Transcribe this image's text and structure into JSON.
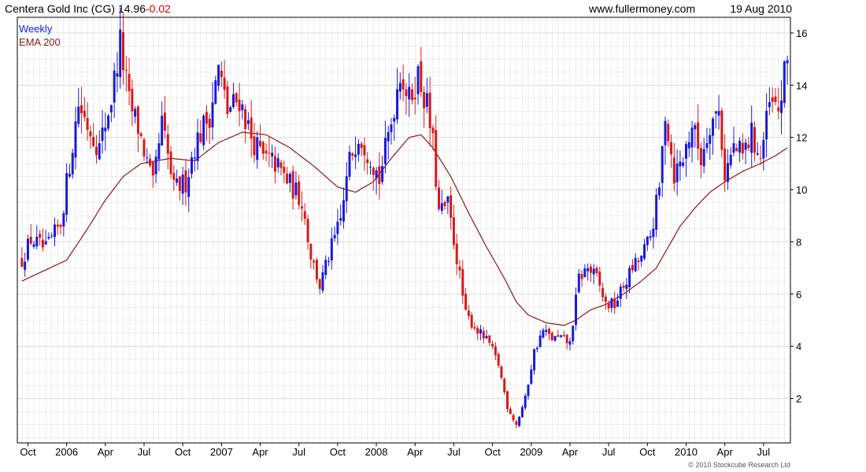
{
  "header": {
    "company": "Centera Gold Inc",
    "ticker_paren": "(CG)",
    "price": "14.96",
    "change": "-0.02",
    "site": "www.fullermoney.com",
    "date": "19 Aug 2010"
  },
  "legend": {
    "interval": "Weekly",
    "ema": "EMA 200"
  },
  "copyright": "© 2010 Stockcube Research Ltd",
  "colors": {
    "up": "#1a1ad6",
    "down": "#d61a1a",
    "ema": "#8b1a1a",
    "grid": "#dcdcdc",
    "frame": "#000000"
  },
  "chart_data": {
    "type": "candlestick",
    "interval": "weekly",
    "ylim": [
      0.3,
      16.6
    ],
    "ylabel": "",
    "xlabel": "",
    "y_ticks": [
      2,
      4,
      6,
      8,
      10,
      12,
      14,
      16
    ],
    "x_ticks": [
      {
        "label": "Oct",
        "week": 2
      },
      {
        "label": "2006",
        "week": 15
      },
      {
        "label": "Apr",
        "week": 28
      },
      {
        "label": "Jul",
        "week": 41
      },
      {
        "label": "Oct",
        "week": 54
      },
      {
        "label": "2007",
        "week": 67
      },
      {
        "label": "Apr",
        "week": 80
      },
      {
        "label": "Jul",
        "week": 93
      },
      {
        "label": "Oct",
        "week": 106
      },
      {
        "label": "2008",
        "week": 119
      },
      {
        "label": "Apr",
        "week": 132
      },
      {
        "label": "Jul",
        "week": 145
      },
      {
        "label": "Oct",
        "week": 158
      },
      {
        "label": "2009",
        "week": 171
      },
      {
        "label": "Apr",
        "week": 184
      },
      {
        "label": "Jul",
        "week": 197
      },
      {
        "label": "Oct",
        "week": 210
      },
      {
        "label": "2010",
        "week": 223
      },
      {
        "label": "Apr",
        "week": 236
      },
      {
        "label": "Jul",
        "week": 249
      }
    ],
    "week_count": 258,
    "close_anchors": [
      [
        0,
        7.3
      ],
      [
        3,
        8.1
      ],
      [
        8,
        7.7
      ],
      [
        13,
        8.7
      ],
      [
        16,
        11.0
      ],
      [
        19,
        13.3
      ],
      [
        22,
        12.5
      ],
      [
        26,
        11.6
      ],
      [
        30,
        13.5
      ],
      [
        33,
        15.6
      ],
      [
        36,
        13.3
      ],
      [
        39,
        12.4
      ],
      [
        44,
        10.1
      ],
      [
        47,
        12.5
      ],
      [
        51,
        10.0
      ],
      [
        55,
        10.3
      ],
      [
        58,
        11.7
      ],
      [
        63,
        12.9
      ],
      [
        66,
        14.6
      ],
      [
        69,
        13.0
      ],
      [
        73,
        13.5
      ],
      [
        77,
        12.0
      ],
      [
        81,
        11.2
      ],
      [
        85,
        11.0
      ],
      [
        90,
        10.2
      ],
      [
        94,
        9.6
      ],
      [
        97,
        7.5
      ],
      [
        100,
        6.3
      ],
      [
        104,
        7.8
      ],
      [
        107,
        8.8
      ],
      [
        110,
        11.1
      ],
      [
        113,
        12.2
      ],
      [
        117,
        11.3
      ],
      [
        120,
        10.4
      ],
      [
        124,
        12.6
      ],
      [
        127,
        14.6
      ],
      [
        130,
        13.4
      ],
      [
        133,
        14.4
      ],
      [
        136,
        13.2
      ],
      [
        138,
        11.7
      ],
      [
        140,
        9.1
      ],
      [
        143,
        9.4
      ],
      [
        146,
        7.4
      ],
      [
        149,
        5.2
      ],
      [
        153,
        4.6
      ],
      [
        157,
        4.1
      ],
      [
        160,
        3.3
      ],
      [
        163,
        1.7
      ],
      [
        166,
        1.0
      ],
      [
        169,
        2.0
      ],
      [
        172,
        3.8
      ],
      [
        175,
        4.6
      ],
      [
        178,
        4.3
      ],
      [
        181,
        4.3
      ],
      [
        184,
        4.1
      ],
      [
        187,
        6.6
      ],
      [
        190,
        7.0
      ],
      [
        193,
        6.6
      ],
      [
        196,
        5.6
      ],
      [
        199,
        5.6
      ],
      [
        202,
        6.3
      ],
      [
        205,
        7.0
      ],
      [
        208,
        7.4
      ],
      [
        211,
        8.2
      ],
      [
        214,
        10.0
      ],
      [
        216,
        13.0
      ],
      [
        219,
        10.6
      ],
      [
        222,
        11.2
      ],
      [
        225,
        12.5
      ],
      [
        228,
        11.2
      ],
      [
        231,
        12.6
      ],
      [
        234,
        13.0
      ],
      [
        236,
        10.6
      ],
      [
        239,
        11.6
      ],
      [
        242,
        11.3
      ],
      [
        245,
        12.1
      ],
      [
        248,
        11.2
      ],
      [
        251,
        13.2
      ],
      [
        254,
        13.0
      ],
      [
        257,
        14.96
      ]
    ],
    "ema_anchors": [
      [
        0,
        6.5
      ],
      [
        15,
        7.3
      ],
      [
        22,
        8.5
      ],
      [
        28,
        9.6
      ],
      [
        34,
        10.5
      ],
      [
        40,
        11.0
      ],
      [
        50,
        11.2
      ],
      [
        58,
        11.1
      ],
      [
        66,
        11.8
      ],
      [
        74,
        12.2
      ],
      [
        82,
        12.1
      ],
      [
        90,
        11.6
      ],
      [
        98,
        10.9
      ],
      [
        106,
        10.1
      ],
      [
        112,
        9.9
      ],
      [
        118,
        10.3
      ],
      [
        124,
        11.2
      ],
      [
        130,
        12.0
      ],
      [
        134,
        12.1
      ],
      [
        138,
        11.6
      ],
      [
        144,
        10.5
      ],
      [
        150,
        9.1
      ],
      [
        156,
        7.8
      ],
      [
        162,
        6.6
      ],
      [
        166,
        5.7
      ],
      [
        170,
        5.2
      ],
      [
        176,
        4.9
      ],
      [
        182,
        4.8
      ],
      [
        186,
        5.0
      ],
      [
        191,
        5.4
      ],
      [
        196,
        5.6
      ],
      [
        202,
        6.0
      ],
      [
        208,
        6.5
      ],
      [
        213,
        7.0
      ],
      [
        217,
        7.8
      ],
      [
        221,
        8.6
      ],
      [
        226,
        9.3
      ],
      [
        231,
        9.9
      ],
      [
        236,
        10.3
      ],
      [
        242,
        10.7
      ],
      [
        248,
        11.0
      ],
      [
        253,
        11.3
      ],
      [
        257,
        11.6
      ]
    ]
  }
}
